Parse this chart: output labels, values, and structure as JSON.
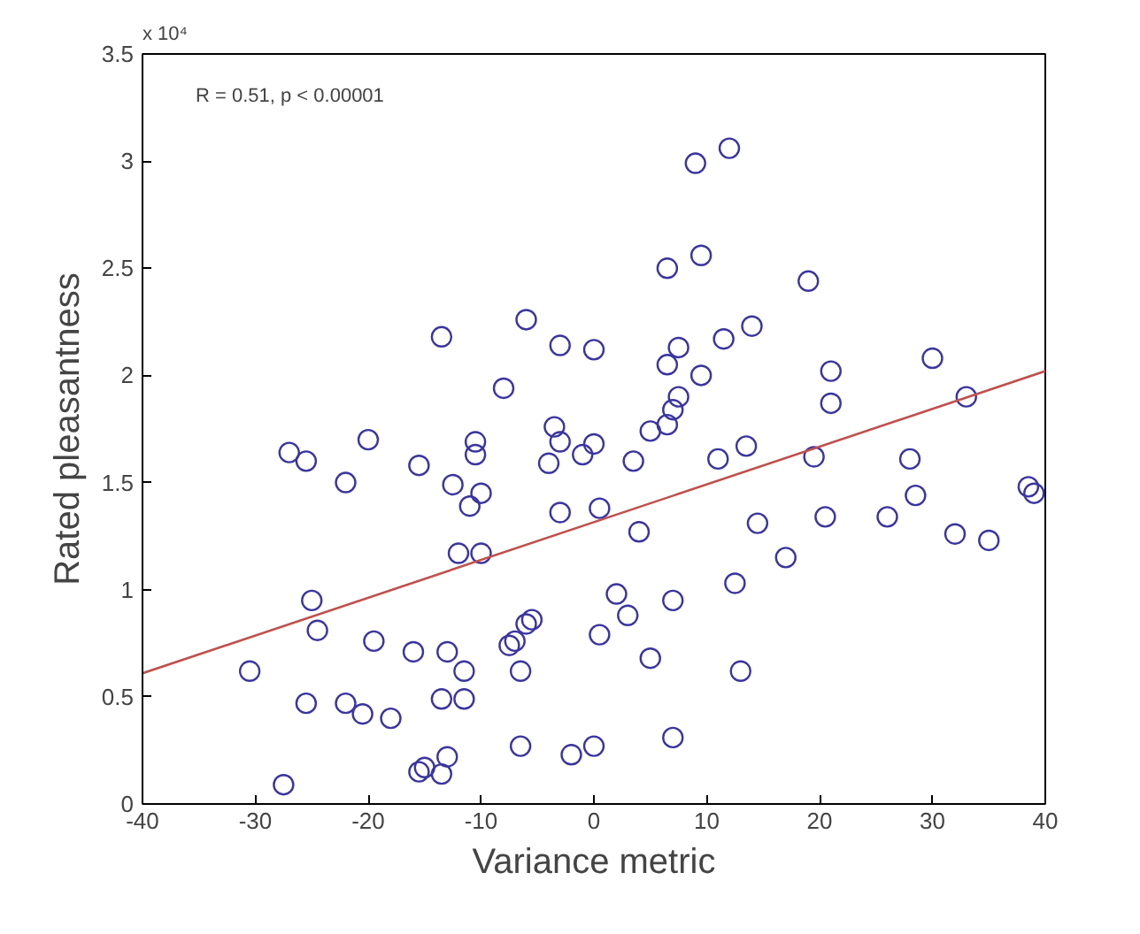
{
  "chart_data": {
    "type": "scatter",
    "xlabel": "Variance metric",
    "ylabel": "Rated pleasantness",
    "annotations": [
      "R = 0.51, p < 0.00001",
      "x 10⁴"
    ],
    "xlim": [
      -40,
      40
    ],
    "xticks": [
      -40,
      -30,
      -20,
      -10,
      0,
      10,
      20,
      30,
      40
    ],
    "ylim": [
      0,
      3.5
    ],
    "yticks": [
      0,
      0.5,
      1,
      1.5,
      2,
      2.5,
      3,
      3.5
    ],
    "grid": false,
    "series": [
      {
        "color": "#3a35a0",
        "marker": "circle",
        "x": [
          -30.5,
          -27.5,
          -27,
          -25.5,
          -25.5,
          -25,
          -24.5,
          -22,
          -22,
          -20.5,
          -20,
          -19.5,
          -18,
          -16,
          -15.5,
          -15.5,
          -15,
          -13.5,
          -13.5,
          -13.5,
          -13,
          -13,
          -12.5,
          -12,
          -11.5,
          -11.5,
          -11,
          -10.5,
          -10.5,
          -10,
          -10,
          -8,
          -7.5,
          -7,
          -6.5,
          -6.5,
          -6,
          -6,
          -5.5,
          -4,
          -3.5,
          -3,
          -3,
          -3,
          -2,
          -1,
          0,
          0,
          0,
          0.5,
          0.5,
          2,
          3,
          3.5,
          4,
          5,
          5,
          6.5,
          6.5,
          6.5,
          7,
          7,
          7,
          7.5,
          7.5,
          9,
          9.5,
          9.5,
          11,
          11.5,
          12,
          12.5,
          13,
          13.5,
          14,
          14.5,
          17,
          19,
          19.5,
          20.5,
          21,
          21,
          26,
          28,
          28.5,
          30,
          32,
          33,
          35,
          38.5,
          39
        ],
        "values": [
          0.62,
          0.09,
          1.64,
          1.6,
          0.47,
          0.95,
          0.81,
          1.5,
          0.47,
          0.42,
          1.7,
          0.76,
          0.4,
          0.71,
          1.58,
          0.15,
          0.17,
          2.18,
          0.14,
          0.49,
          0.71,
          0.22,
          1.49,
          1.17,
          0.49,
          0.62,
          1.39,
          1.69,
          1.63,
          1.45,
          1.17,
          1.94,
          0.74,
          0.76,
          0.27,
          0.62,
          2.26,
          0.84,
          0.86,
          1.59,
          1.76,
          1.69,
          1.36,
          2.14,
          0.23,
          1.63,
          0.27,
          2.12,
          1.68,
          1.38,
          0.79,
          0.98,
          0.88,
          1.6,
          1.27,
          1.74,
          0.68,
          2.5,
          2.05,
          1.77,
          1.84,
          0.95,
          0.31,
          1.9,
          2.13,
          2.99,
          2.0,
          2.56,
          1.61,
          2.17,
          3.06,
          1.03,
          0.62,
          1.67,
          2.23,
          1.31,
          1.15,
          2.44,
          1.62,
          1.34,
          2.02,
          1.87,
          1.34,
          1.61,
          1.44,
          2.08,
          1.26,
          1.9,
          1.23,
          1.48,
          1.45
        ]
      },
      {
        "type": "line",
        "color": "#c0504d",
        "x": [
          -40,
          40
        ],
        "values": [
          0.61,
          2.02
        ],
        "line_style": "solid"
      }
    ]
  }
}
